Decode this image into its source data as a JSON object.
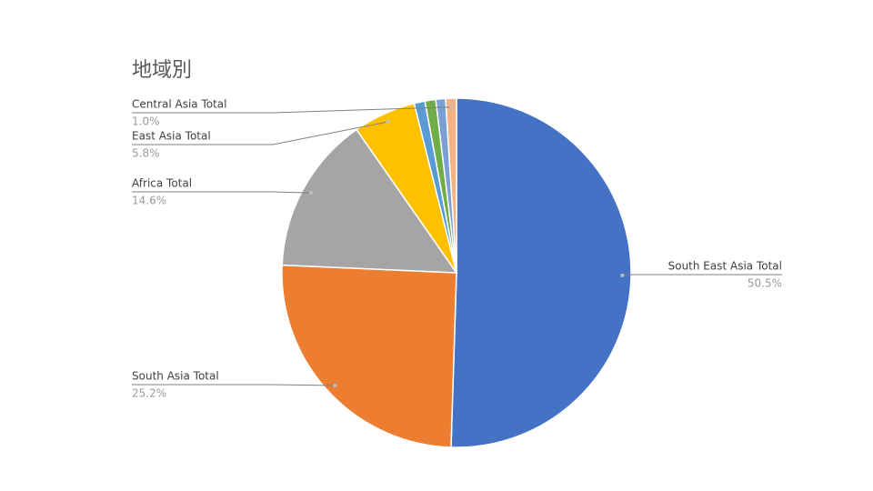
{
  "chart_data": {
    "type": "pie",
    "title": "地域別",
    "categories": [
      "South East Asia Total",
      "South Asia Total",
      "Africa Total",
      "East Asia Total",
      null,
      null,
      null,
      "Central Asia Total"
    ],
    "values": [
      50.5,
      25.2,
      14.6,
      5.8,
      1.0,
      1.0,
      0.9,
      1.0
    ],
    "value_labels": [
      "50.5%",
      "25.2%",
      "14.6%",
      "5.8%",
      null,
      null,
      null,
      "1.0%"
    ],
    "colors": [
      "#4472c4",
      "#ed7d31",
      "#a5a5a5",
      "#ffc000",
      "#5b9bd5",
      "#70ad47",
      "#7b9fd4",
      "#f4b183"
    ]
  }
}
